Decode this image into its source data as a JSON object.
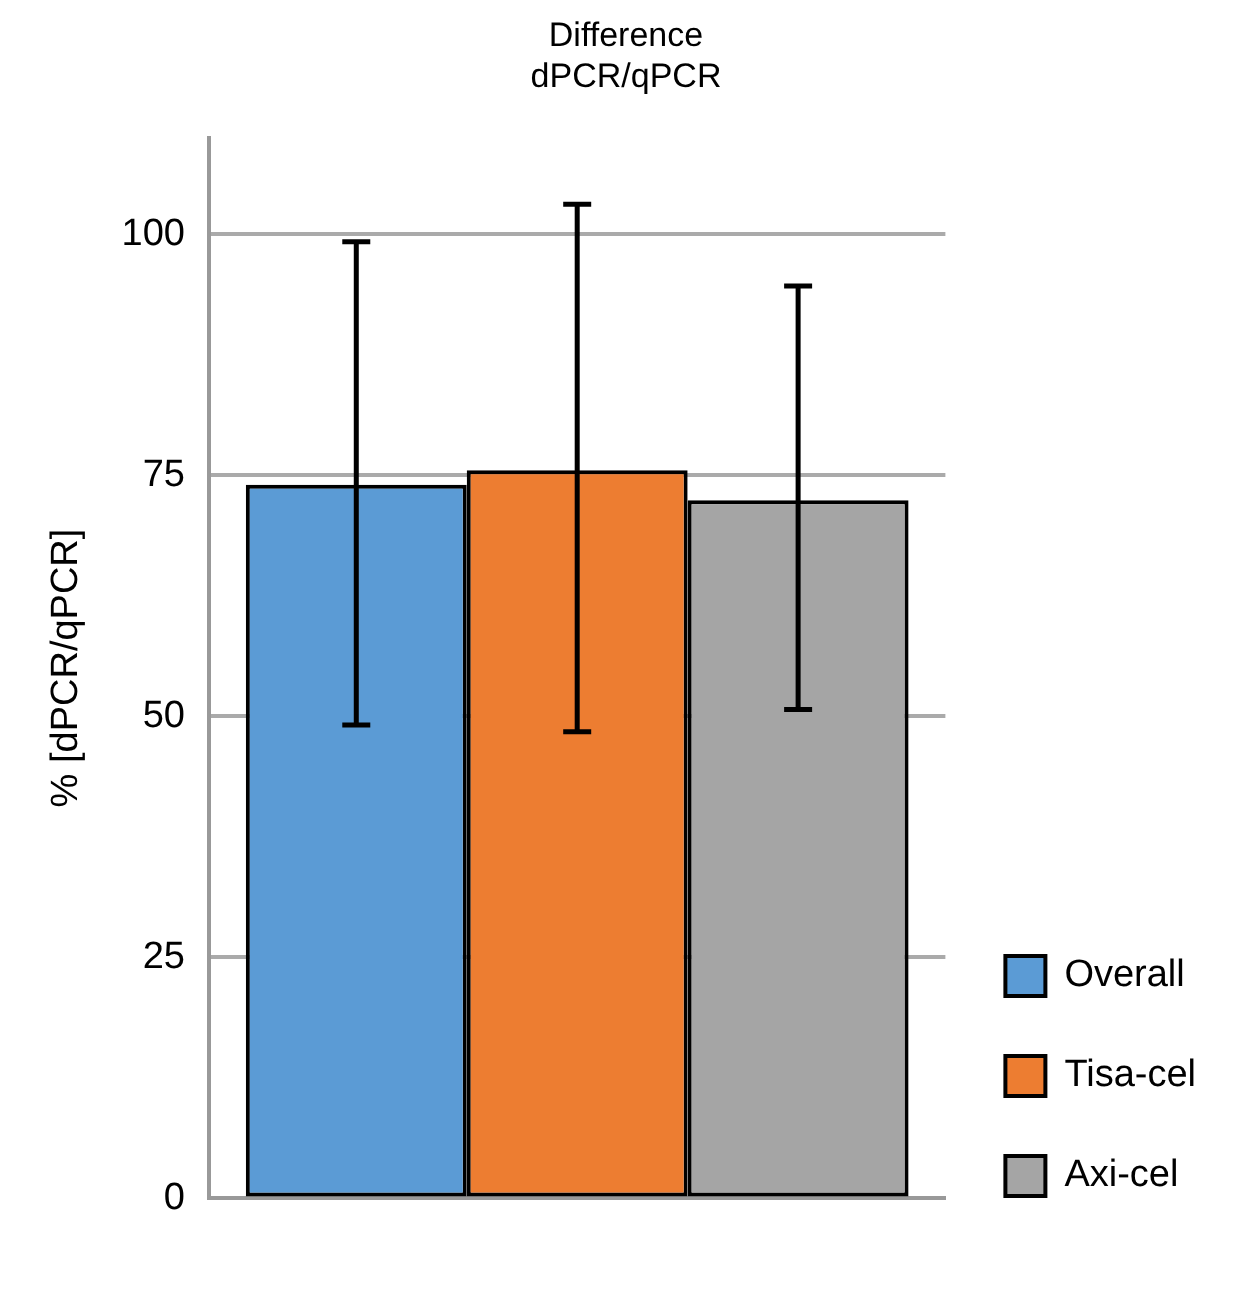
{
  "chart_data": {
    "type": "bar",
    "title": "Difference\ndPCR/qPCR",
    "ylabel": "% [dPCR/qPCR]",
    "categories": [
      null
    ],
    "ylim": [
      0,
      110
    ],
    "yticks": [
      0,
      25,
      50,
      75,
      100
    ],
    "grid": "y",
    "legend": "right",
    "series": [
      {
        "name": "Overall",
        "color": "#5b9bd5",
        "values": [
          74.0
        ],
        "errors": [
          [
            49.1,
            99.2
          ]
        ]
      },
      {
        "name": "Tisa-cel",
        "color": "#ed7d31",
        "values": [
          75.5
        ],
        "errors": [
          [
            48.4,
            103.1
          ]
        ]
      },
      {
        "name": "Axi-cel",
        "color": "#a5a5a5",
        "values": [
          72.4
        ],
        "errors": [
          [
            50.7,
            94.6
          ]
        ]
      }
    ]
  }
}
